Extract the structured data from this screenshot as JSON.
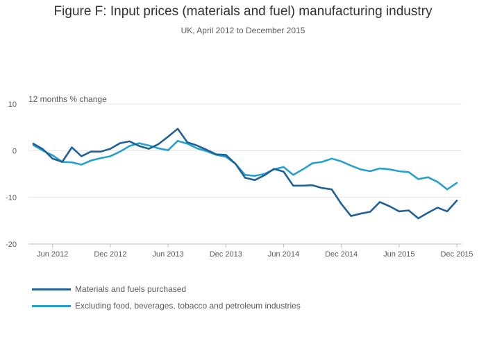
{
  "title": "Figure F: Input prices (materials and fuel) manufacturing industry",
  "subtitle": "UK, April 2012 to December 2015",
  "chart_data": {
    "type": "line",
    "ylabel": "12 months % change",
    "ylim": [
      -20,
      10
    ],
    "yticks": [
      "10",
      "0",
      "-10",
      "-20"
    ],
    "xticks": [
      "Jun 2012",
      "Dec 2012",
      "Jun 2013",
      "Dec 2013",
      "Jun 2014",
      "Dec 2014",
      "Jun 2015",
      "Dec 2015"
    ],
    "x": [
      "Apr 2012",
      "May 2012",
      "Jun 2012",
      "Jul 2012",
      "Aug 2012",
      "Sep 2012",
      "Oct 2012",
      "Nov 2012",
      "Dec 2012",
      "Jan 2013",
      "Feb 2013",
      "Mar 2013",
      "Apr 2013",
      "May 2013",
      "Jun 2013",
      "Jul 2013",
      "Aug 2013",
      "Sep 2013",
      "Oct 2013",
      "Nov 2013",
      "Dec 2013",
      "Jan 2014",
      "Feb 2014",
      "Mar 2014",
      "Apr 2014",
      "May 2014",
      "Jun 2014",
      "Jul 2014",
      "Aug 2014",
      "Sep 2014",
      "Oct 2014",
      "Nov 2014",
      "Dec 2014",
      "Jan 2015",
      "Feb 2015",
      "Mar 2015",
      "Apr 2015",
      "May 2015",
      "Jun 2015",
      "Jul 2015",
      "Aug 2015",
      "Sep 2015",
      "Oct 2015",
      "Nov 2015",
      "Dec 2015"
    ],
    "grid": true,
    "legend_position": "bottom-left",
    "series": [
      {
        "name": "Materials and fuels purchased",
        "color": "#206095",
        "values": [
          1.5,
          0.3,
          -1.7,
          -2.4,
          0.7,
          -1.2,
          -0.2,
          -0.2,
          0.4,
          1.6,
          2.0,
          1.0,
          0.4,
          1.4,
          3.0,
          4.7,
          1.8,
          1.1,
          0.2,
          -0.8,
          -0.9,
          -2.8,
          -5.8,
          -6.3,
          -5.3,
          -3.9,
          -4.5,
          -7.5,
          -7.5,
          -7.4,
          -8.0,
          -8.3,
          -11.4,
          -14.0,
          -13.5,
          -13.1,
          -11.0,
          -11.9,
          -13.0,
          -12.8,
          -14.5,
          -13.3,
          -12.2,
          -13.0,
          -10.7
        ]
      },
      {
        "name": "Excluding food, beverages, tobacco and petroleum industries",
        "color": "#27a0cc",
        "values": [
          1.2,
          0.0,
          -1.0,
          -2.4,
          -2.5,
          -3.0,
          -2.1,
          -1.6,
          -1.2,
          -0.2,
          1.0,
          1.6,
          1.1,
          0.5,
          0.1,
          2.1,
          1.5,
          0.5,
          -0.1,
          -0.9,
          -1.3,
          -2.8,
          -5.2,
          -5.4,
          -5.0,
          -4.0,
          -3.5,
          -5.2,
          -4.0,
          -2.7,
          -2.4,
          -1.7,
          -2.3,
          -3.2,
          -4.0,
          -4.4,
          -3.8,
          -4.0,
          -4.4,
          -4.6,
          -6.1,
          -5.7,
          -6.7,
          -8.3,
          -6.9
        ]
      }
    ]
  }
}
